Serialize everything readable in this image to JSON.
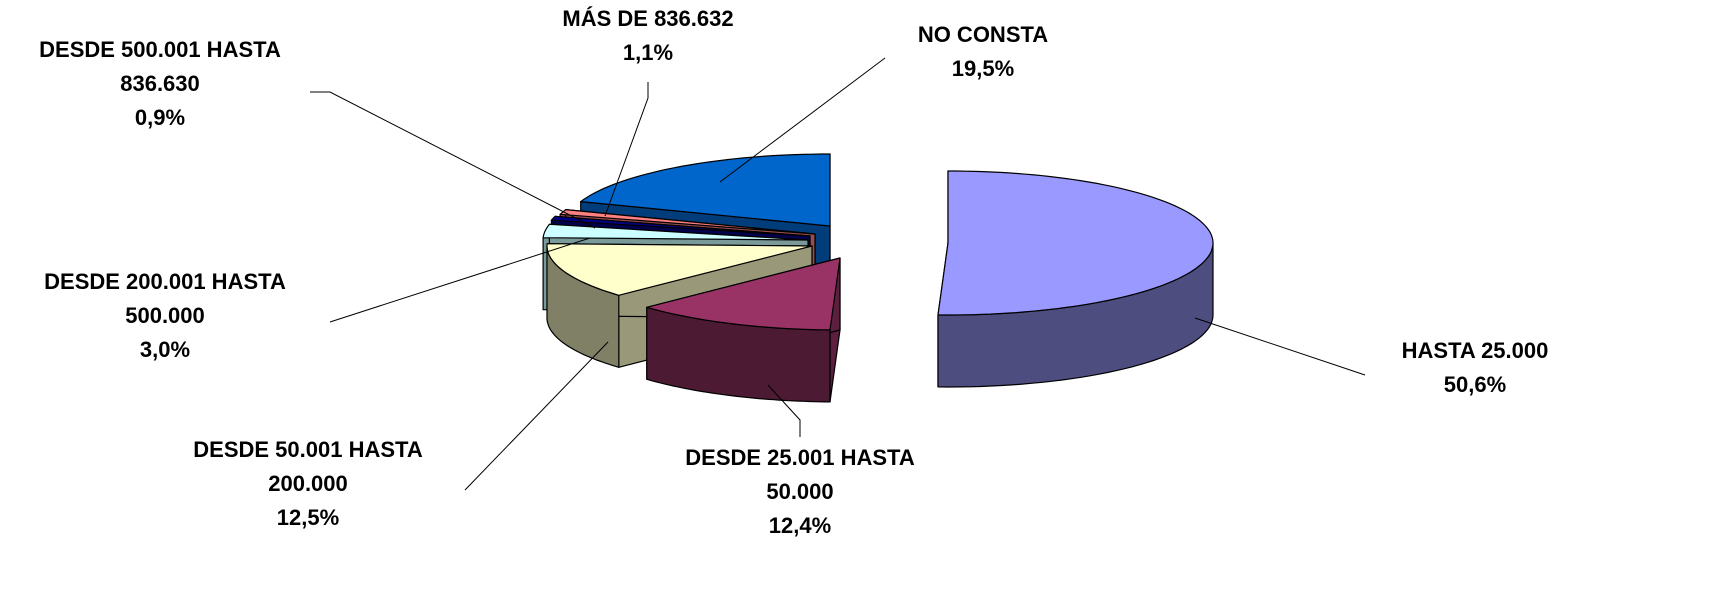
{
  "chart_data": {
    "type": "pie",
    "categories": [
      "HASTA 25.000",
      "DESDE 25.001 HASTA 50.000",
      "DESDE 50.001 HASTA 200.000",
      "DESDE 200.001 HASTA 500.000",
      "DESDE 500.001 HASTA 836.630",
      "MÁS DE 836.632",
      "NO CONSTA"
    ],
    "values": [
      50.6,
      12.4,
      12.5,
      3.0,
      0.9,
      1.1,
      19.5
    ],
    "value_labels": [
      "50,6%",
      "12,4%",
      "12,5%",
      "3,0%",
      "0,9%",
      "1,1%",
      "19,5%"
    ],
    "colors": [
      "#9999ff",
      "#993366",
      "#ffffcc",
      "#ccffff",
      "#000080",
      "#ff8080",
      "#0066cc"
    ]
  }
}
